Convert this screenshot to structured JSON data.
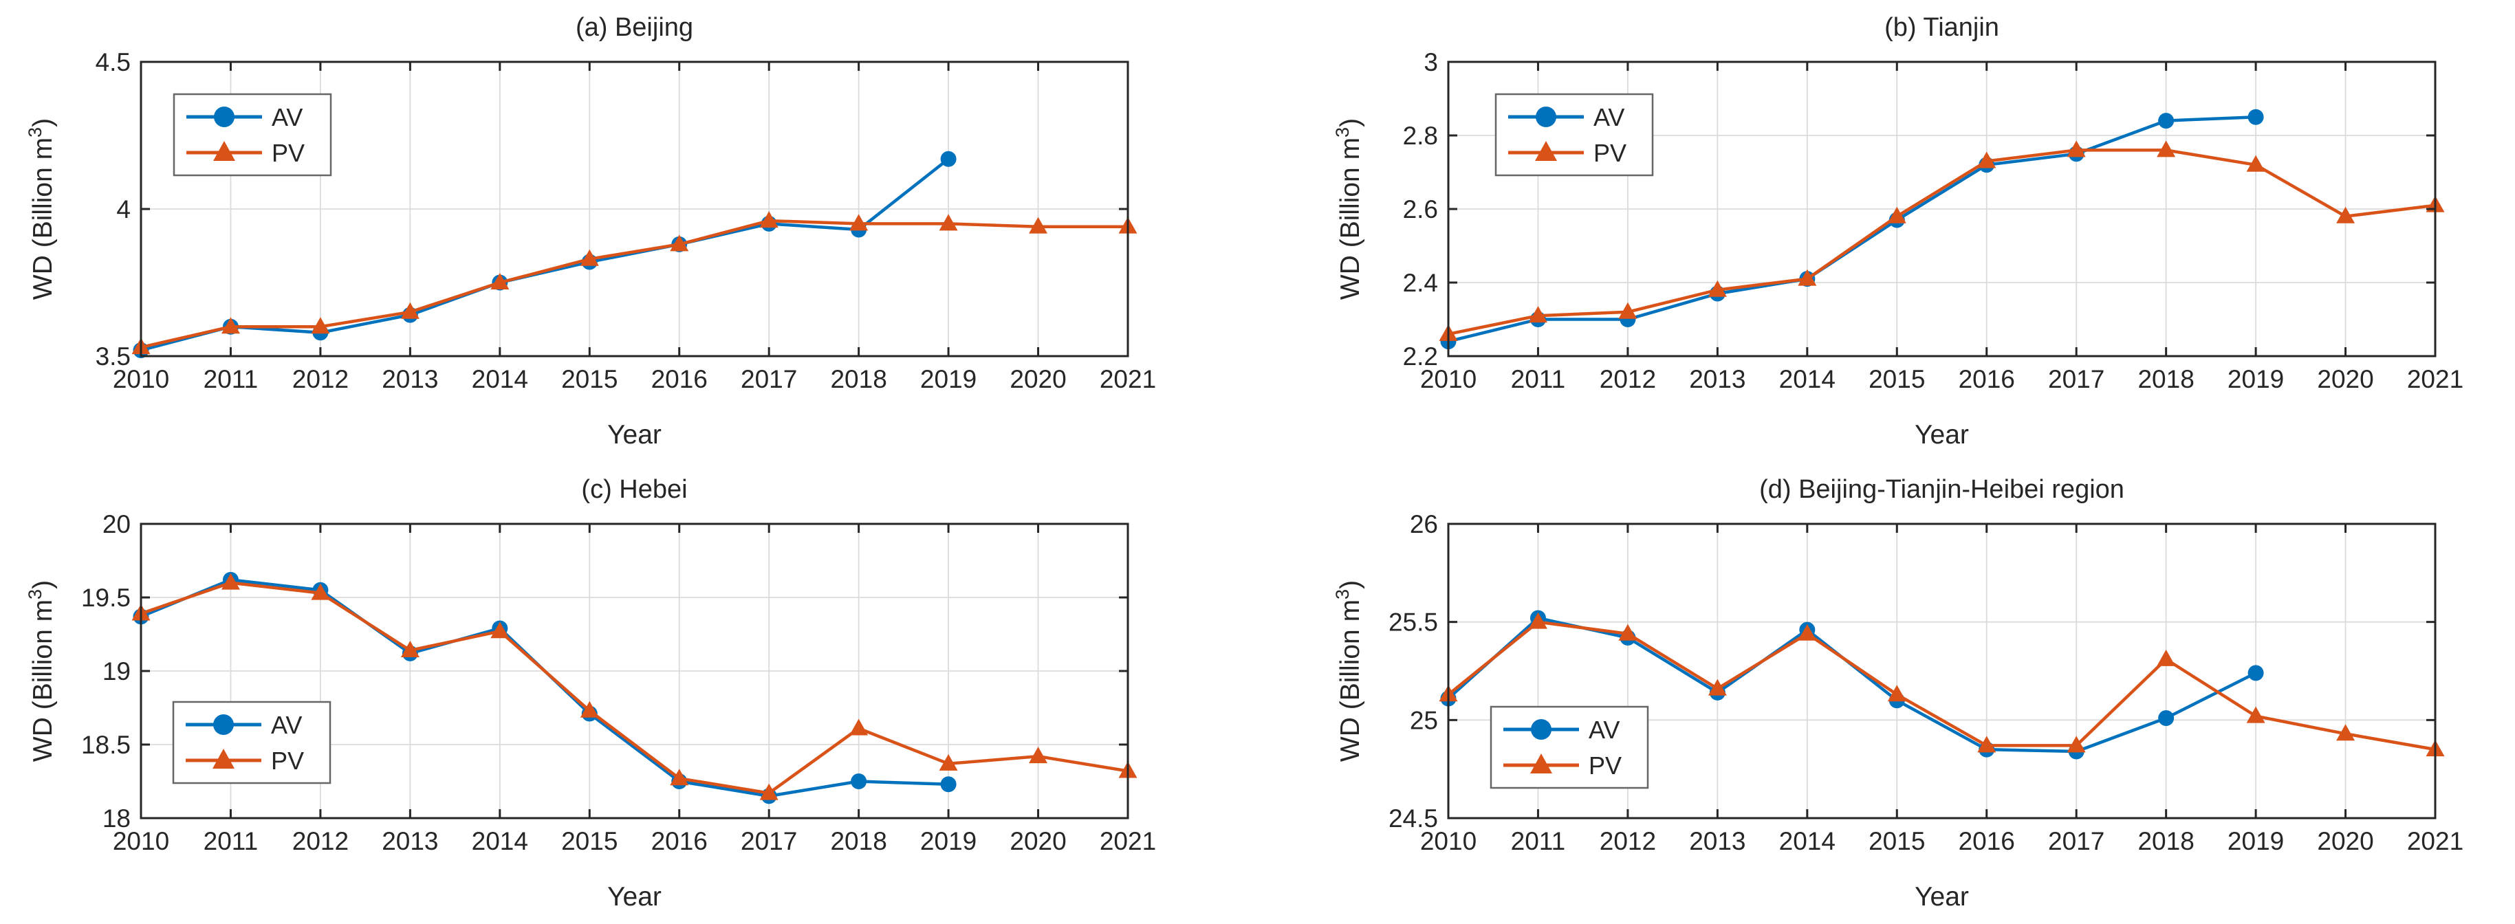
{
  "figure": {
    "background": "#ffffff",
    "axis_color": "#262626",
    "grid_color": "#dbdbdb",
    "legend_border_color": "#666666",
    "series_colors": {
      "AV": "#0072BD",
      "PV": "#D95319"
    }
  },
  "chart_data": [
    {
      "id": "a",
      "row": 0,
      "col": 0,
      "type": "line",
      "title": "(a) Beijing",
      "xlabel": "Year",
      "ylabel": "WD (Billion m^3)",
      "xlim": [
        2010,
        2021
      ],
      "ylim": [
        3.5,
        4.5
      ],
      "xticks": [
        2010,
        2011,
        2012,
        2013,
        2014,
        2015,
        2016,
        2017,
        2018,
        2019,
        2020,
        2021
      ],
      "yticks": [
        {
          "v": 3.5,
          "label": "3.5"
        },
        {
          "v": 4,
          "label": "4"
        },
        {
          "v": 4.5,
          "label": "4.5"
        }
      ],
      "grid": true,
      "legend": {
        "position": "upper-left",
        "offset": [
          48,
          47
        ],
        "entries": [
          "AV",
          "PV"
        ]
      },
      "series": [
        {
          "name": "AV",
          "color": "#0072BD",
          "marker": "circle",
          "x": [
            2010,
            2011,
            2012,
            2013,
            2014,
            2015,
            2016,
            2017,
            2018,
            2019
          ],
          "y": [
            3.52,
            3.6,
            3.58,
            3.64,
            3.75,
            3.82,
            3.88,
            3.95,
            3.93,
            4.17
          ]
        },
        {
          "name": "PV",
          "color": "#D95319",
          "marker": "triangle",
          "x": [
            2010,
            2011,
            2012,
            2013,
            2014,
            2015,
            2016,
            2017,
            2018,
            2019,
            2020,
            2021
          ],
          "y": [
            3.53,
            3.6,
            3.6,
            3.65,
            3.75,
            3.83,
            3.88,
            3.96,
            3.95,
            3.95,
            3.94,
            3.94
          ]
        }
      ]
    },
    {
      "id": "b",
      "row": 0,
      "col": 1,
      "type": "line",
      "title": "(b) Tianjin",
      "xlabel": "Year",
      "ylabel": "WD (Billion m^3)",
      "xlim": [
        2010,
        2021
      ],
      "ylim": [
        2.2,
        3.0
      ],
      "xticks": [
        2010,
        2011,
        2012,
        2013,
        2014,
        2015,
        2016,
        2017,
        2018,
        2019,
        2020,
        2021
      ],
      "yticks": [
        {
          "v": 2.2,
          "label": "2.2"
        },
        {
          "v": 2.4,
          "label": "2.4"
        },
        {
          "v": 2.6,
          "label": "2.6"
        },
        {
          "v": 2.8,
          "label": "2.8"
        },
        {
          "v": 3,
          "label": "3"
        }
      ],
      "grid": true,
      "legend": {
        "position": "upper-left",
        "offset": [
          69,
          47
        ],
        "entries": [
          "AV",
          "PV"
        ]
      },
      "series": [
        {
          "name": "AV",
          "color": "#0072BD",
          "marker": "circle",
          "x": [
            2010,
            2011,
            2012,
            2013,
            2014,
            2015,
            2016,
            2017,
            2018,
            2019
          ],
          "y": [
            2.24,
            2.3,
            2.3,
            2.37,
            2.41,
            2.57,
            2.72,
            2.75,
            2.84,
            2.85
          ]
        },
        {
          "name": "PV",
          "color": "#D95319",
          "marker": "triangle",
          "x": [
            2010,
            2011,
            2012,
            2013,
            2014,
            2015,
            2016,
            2017,
            2018,
            2019,
            2020,
            2021
          ],
          "y": [
            2.26,
            2.31,
            2.32,
            2.38,
            2.41,
            2.58,
            2.73,
            2.76,
            2.76,
            2.72,
            2.58,
            2.61
          ]
        }
      ]
    },
    {
      "id": "c",
      "row": 1,
      "col": 0,
      "type": "line",
      "title": "(c) Hebei",
      "xlabel": "Year",
      "ylabel": "WD (Billion m^3)",
      "xlim": [
        2010,
        2021
      ],
      "ylim": [
        18,
        20
      ],
      "xticks": [
        2010,
        2011,
        2012,
        2013,
        2014,
        2015,
        2016,
        2017,
        2018,
        2019,
        2020,
        2021
      ],
      "yticks": [
        {
          "v": 18,
          "label": "18"
        },
        {
          "v": 18.5,
          "label": "18.5"
        },
        {
          "v": 19,
          "label": "19"
        },
        {
          "v": 19.5,
          "label": "19.5"
        },
        {
          "v": 20,
          "label": "20"
        }
      ],
      "grid": true,
      "legend": {
        "position": "center-left",
        "offset": [
          47,
          259
        ],
        "entries": [
          "AV",
          "PV"
        ]
      },
      "series": [
        {
          "name": "AV",
          "color": "#0072BD",
          "marker": "circle",
          "x": [
            2010,
            2011,
            2012,
            2013,
            2014,
            2015,
            2016,
            2017,
            2018,
            2019
          ],
          "y": [
            19.37,
            19.62,
            19.55,
            19.12,
            19.29,
            18.71,
            18.25,
            18.15,
            18.25,
            18.23
          ]
        },
        {
          "name": "PV",
          "color": "#D95319",
          "marker": "triangle",
          "x": [
            2010,
            2011,
            2012,
            2013,
            2014,
            2015,
            2016,
            2017,
            2018,
            2019,
            2020,
            2021
          ],
          "y": [
            19.39,
            19.6,
            19.53,
            19.14,
            19.27,
            18.73,
            18.27,
            18.17,
            18.61,
            18.37,
            18.42,
            18.32
          ]
        }
      ]
    },
    {
      "id": "d",
      "row": 1,
      "col": 1,
      "type": "line",
      "title": "(d) Beijing-Tianjin-Heibei region",
      "xlabel": "Year",
      "ylabel": "WD (Billion m^3)",
      "xlim": [
        2010,
        2021
      ],
      "ylim": [
        24.5,
        26
      ],
      "xticks": [
        2010,
        2011,
        2012,
        2013,
        2014,
        2015,
        2016,
        2017,
        2018,
        2019,
        2020,
        2021
      ],
      "yticks": [
        {
          "v": 24.5,
          "label": "24.5"
        },
        {
          "v": 25,
          "label": "25"
        },
        {
          "v": 25.5,
          "label": "25.5"
        },
        {
          "v": 26,
          "label": "26"
        }
      ],
      "grid": true,
      "legend": {
        "position": "center-left",
        "offset": [
          62,
          266
        ],
        "entries": [
          "AV",
          "PV"
        ]
      },
      "series": [
        {
          "name": "AV",
          "color": "#0072BD",
          "marker": "circle",
          "x": [
            2010,
            2011,
            2012,
            2013,
            2014,
            2015,
            2016,
            2017,
            2018,
            2019
          ],
          "y": [
            25.11,
            25.52,
            25.42,
            25.14,
            25.46,
            25.1,
            24.85,
            24.84,
            25.01,
            25.24
          ]
        },
        {
          "name": "PV",
          "color": "#D95319",
          "marker": "triangle",
          "x": [
            2010,
            2011,
            2012,
            2013,
            2014,
            2015,
            2016,
            2017,
            2018,
            2019,
            2020,
            2021
          ],
          "y": [
            25.13,
            25.5,
            25.44,
            25.16,
            25.44,
            25.13,
            24.87,
            24.87,
            25.31,
            25.02,
            24.93,
            24.85
          ]
        }
      ]
    }
  ]
}
